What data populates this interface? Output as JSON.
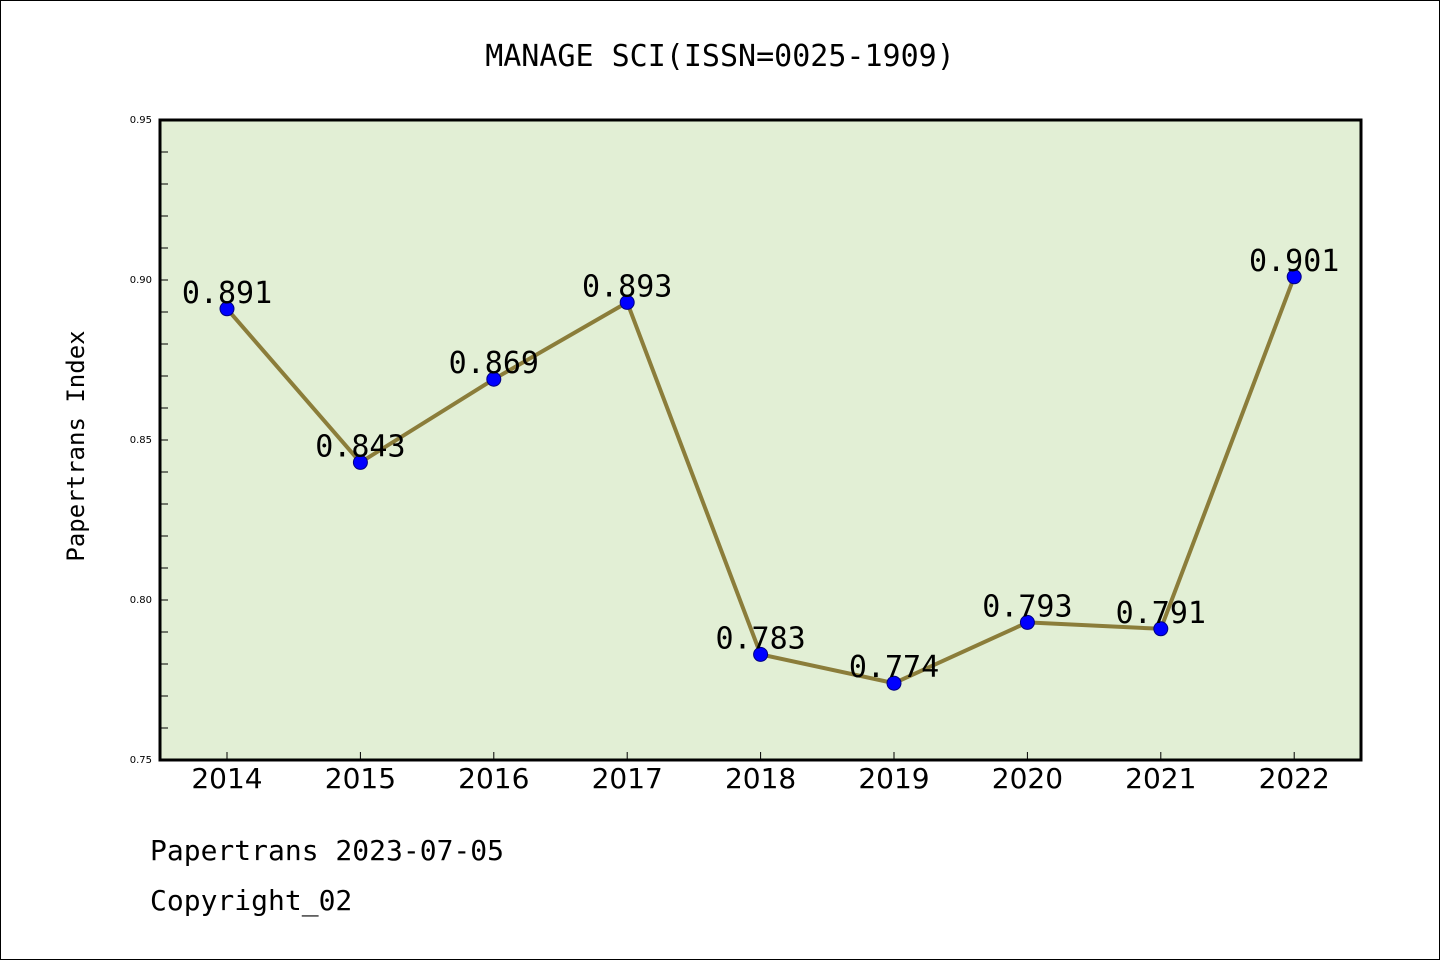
{
  "chart_data": {
    "type": "line",
    "title": "MANAGE SCI(ISSN=0025-1909)",
    "xlabel": "",
    "ylabel": "Papertrans Index",
    "categories": [
      "2014",
      "2015",
      "2016",
      "2017",
      "2018",
      "2019",
      "2020",
      "2021",
      "2022"
    ],
    "series": [
      {
        "values": [
          0.891,
          0.843,
          0.869,
          0.893,
          0.783,
          0.774,
          0.793,
          0.791,
          0.901
        ],
        "data_labels": [
          "0.891",
          "0.843",
          "0.869",
          "0.893",
          "0.783",
          "0.774",
          "0.793",
          "0.791",
          "0.901"
        ]
      }
    ],
    "ylim": [
      0.75,
      0.95
    ],
    "yticks": [
      "0.75",
      "0.80",
      "0.85",
      "0.90",
      "0.95"
    ],
    "grid": false,
    "legend": "none",
    "colors": {
      "plot_background": "#e2efd5",
      "line": "#8b7d3a",
      "marker": "#0000ff"
    }
  },
  "footer": {
    "line1": "Papertrans 2023-07-05",
    "line2": "Copyright_02"
  }
}
